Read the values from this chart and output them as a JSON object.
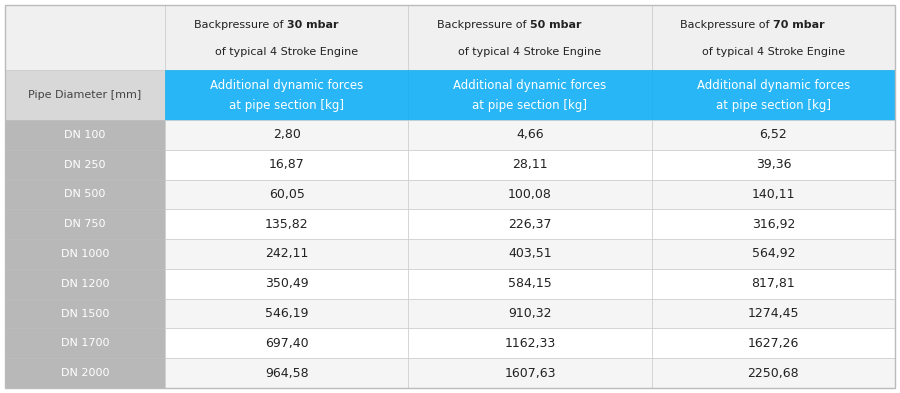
{
  "pipe_diameters": [
    "DN 100",
    "DN 250",
    "DN 500",
    "DN 750",
    "DN 1000",
    "DN 1200",
    "DN 1500",
    "DN 1700",
    "DN 2000"
  ],
  "col_headers_bold": [
    "30 mbar",
    "50 mbar",
    "70 mbar"
  ],
  "col_header_prefix": "Backpressure of ",
  "col_header_suffix": "of typical 4 Stroke Engine",
  "sub_header_line1": "Additional dynamic forces",
  "sub_header_line2": "at pipe section [kg]",
  "row_header": "Pipe Diameter [mm]",
  "values_30": [
    "2,80",
    "16,87",
    "60,05",
    "135,82",
    "242,11",
    "350,49",
    "546,19",
    "697,40",
    "964,58"
  ],
  "values_50": [
    "4,66",
    "28,11",
    "100,08",
    "226,37",
    "403,51",
    "584,15",
    "910,32",
    "1162,33",
    "1607,63"
  ],
  "values_70": [
    "6,52",
    "39,36",
    "140,11",
    "316,92",
    "564,92",
    "817,81",
    "1274,45",
    "1627,26",
    "2250,68"
  ],
  "colors": {
    "top_header_bg": "#f0f0f0",
    "top_header_text": "#222222",
    "sub_header_bg": "#29b6f6",
    "sub_header_text": "#ffffff",
    "pipe_col_bg": "#b8b8b8",
    "pipe_col_text": "#ffffff",
    "pipe_label_bg": "#d8d8d8",
    "pipe_label_text": "#444444",
    "data_bg_odd": "#f5f5f5",
    "data_bg_even": "#ffffff",
    "grid_line": "#cccccc",
    "outer_border": "#bbbbbb"
  },
  "figsize": [
    9.0,
    3.93
  ],
  "dpi": 100
}
